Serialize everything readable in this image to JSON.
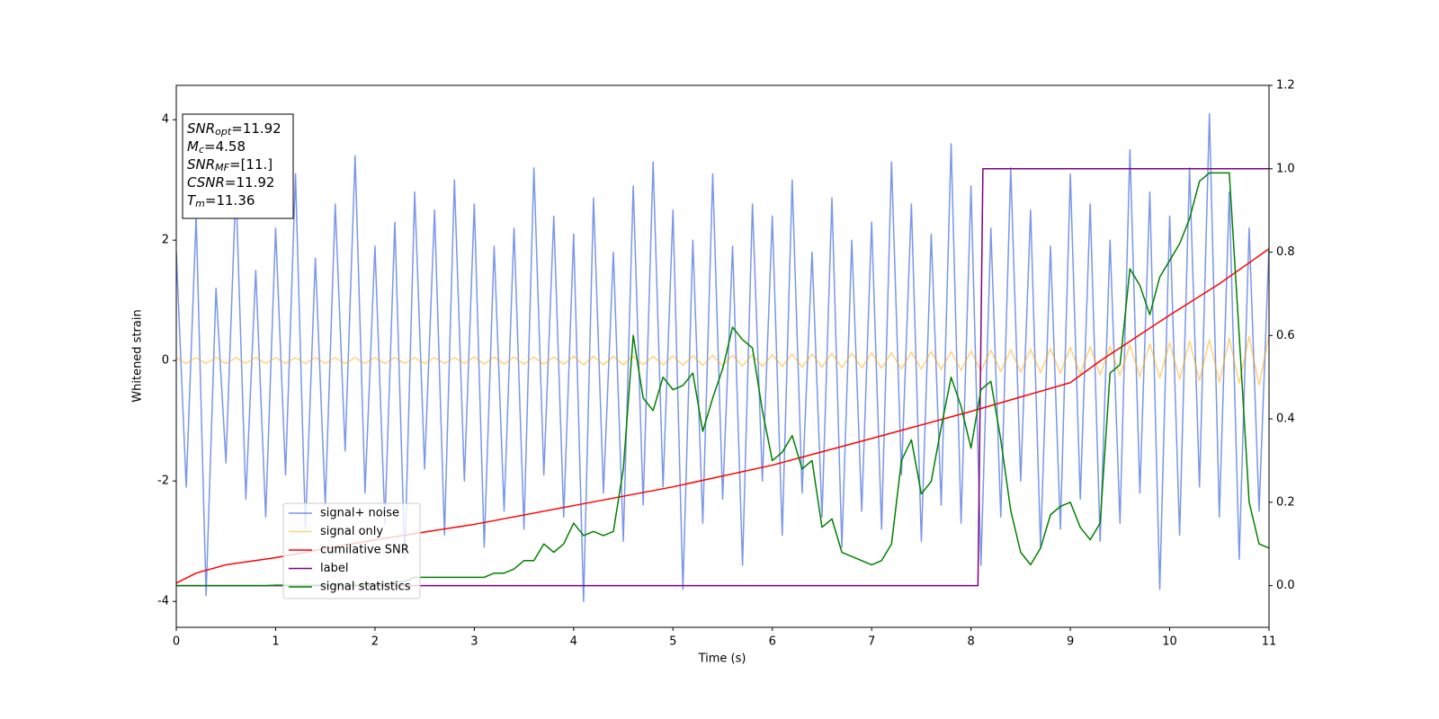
{
  "chart_data": {
    "type": "line",
    "xlabel": "Time (s)",
    "ylabel": "Whitened strain",
    "xlim": [
      0,
      11
    ],
    "xticks": [
      0,
      1,
      2,
      3,
      4,
      5,
      6,
      7,
      8,
      9,
      10,
      11
    ],
    "ylim": [
      -4.43,
      4.57
    ],
    "yticks": [
      -4,
      -2,
      0,
      2,
      4
    ],
    "y2lim": [
      -0.1,
      1.2
    ],
    "y2ticks": [
      {
        "value": 0,
        "label": "0.0"
      },
      0.2,
      0.4,
      0.6,
      0.8,
      {
        "value": 1,
        "label": "1.0"
      },
      1.2
    ],
    "legend": "lower left",
    "x": [
      0,
      0.1,
      0.2,
      0.3,
      0.4,
      0.5,
      0.6,
      0.7,
      0.8,
      0.9,
      1,
      1.1,
      1.2,
      1.3,
      1.4,
      1.5,
      1.6,
      1.7,
      1.8,
      1.9,
      2,
      2.1,
      2.2,
      2.3,
      2.4,
      2.5,
      2.6,
      2.7,
      2.8,
      2.9,
      3,
      3.1,
      3.2,
      3.3,
      3.4,
      3.5,
      3.6,
      3.7,
      3.8,
      3.9,
      4,
      4.1,
      4.2,
      4.3,
      4.4,
      4.5,
      4.6,
      4.7,
      4.8,
      4.9,
      5,
      5.1,
      5.2,
      5.3,
      5.4,
      5.5,
      5.6,
      5.7,
      5.8,
      5.9,
      6,
      6.1,
      6.2,
      6.3,
      6.4,
      6.5,
      6.6,
      6.7,
      6.8,
      6.9,
      7,
      7.1,
      7.2,
      7.3,
      7.4,
      7.5,
      7.6,
      7.7,
      7.8,
      7.9,
      8,
      8.1,
      8.2,
      8.3,
      8.4,
      8.5,
      8.6,
      8.7,
      8.8,
      8.9,
      9,
      9.1,
      9.2,
      9.3,
      9.4,
      9.5,
      9.6,
      9.7,
      9.8,
      9.9,
      10,
      10.1,
      10.2,
      10.3,
      10.4,
      10.5,
      10.6,
      10.7,
      10.8,
      10.9,
      11
    ],
    "series": [
      {
        "name": "signal+ noise",
        "color": "#4169e1",
        "values": [
          1.8,
          -2.1,
          2.4,
          -3.9,
          1.2,
          -1.7,
          2.9,
          -2.3,
          1.5,
          -2.6,
          2.2,
          -1.9,
          3.1,
          -2.8,
          1.7,
          -2.4,
          2.6,
          -1.5,
          3.4,
          -2.2,
          1.9,
          -2.7,
          2.3,
          -3.3,
          2.8,
          -1.8,
          2.5,
          -2.9,
          3.0,
          -2.0,
          2.6,
          -3.1,
          1.9,
          -2.5,
          2.2,
          -2.8,
          3.2,
          -1.9,
          2.4,
          -2.6,
          2.1,
          -4.0,
          2.7,
          -2.2,
          1.8,
          -3.0,
          2.9,
          -2.4,
          3.3,
          -2.1,
          2.5,
          -3.8,
          2.0,
          -2.7,
          3.1,
          -2.3,
          1.9,
          -3.4,
          2.6,
          -2.0,
          2.4,
          -2.9,
          3.0,
          -2.2,
          1.8,
          -2.6,
          2.7,
          -3.1,
          2.0,
          -2.5,
          2.3,
          -2.8,
          3.3,
          -1.9,
          2.6,
          -3.0,
          2.1,
          -2.4,
          3.6,
          -2.7,
          2.9,
          -3.4,
          2.2,
          -2.6,
          3.2,
          -2.0,
          2.5,
          -3.1,
          1.9,
          -2.8,
          3.1,
          -2.3,
          2.6,
          -3.0,
          2.0,
          -2.7,
          3.5,
          -2.2,
          2.8,
          -3.8,
          2.4,
          -2.9,
          3.2,
          -2.1,
          4.1,
          -2.6,
          2.8,
          -3.3,
          2.2,
          -2.5,
          1.9
        ]
      },
      {
        "name": "signal only",
        "color": "#ffa500",
        "values": [
          0.05,
          -0.05,
          0.05,
          -0.05,
          0.05,
          -0.05,
          0.05,
          -0.05,
          0.05,
          -0.05,
          0.05,
          -0.05,
          0.05,
          -0.05,
          0.05,
          -0.05,
          0.05,
          -0.05,
          0.05,
          -0.05,
          0.05,
          -0.05,
          0.05,
          -0.05,
          0.05,
          -0.05,
          0.05,
          -0.05,
          0.05,
          -0.05,
          0.06,
          -0.06,
          0.06,
          -0.06,
          0.06,
          -0.06,
          0.06,
          -0.06,
          0.06,
          -0.06,
          0.07,
          -0.07,
          0.07,
          -0.07,
          0.07,
          -0.07,
          0.07,
          -0.07,
          0.07,
          -0.07,
          0.08,
          -0.08,
          0.08,
          -0.08,
          0.09,
          -0.09,
          0.09,
          -0.09,
          0.1,
          -0.1,
          0.1,
          -0.1,
          0.11,
          -0.11,
          0.11,
          -0.11,
          0.12,
          -0.12,
          0.12,
          -0.12,
          0.13,
          -0.13,
          0.13,
          -0.14,
          0.14,
          -0.14,
          0.15,
          -0.15,
          0.15,
          -0.16,
          0.16,
          -0.17,
          0.17,
          -0.18,
          0.18,
          -0.19,
          0.19,
          -0.2,
          0.2,
          -0.21,
          0.22,
          -0.22,
          0.23,
          -0.24,
          0.24,
          -0.25,
          0.26,
          -0.27,
          0.28,
          -0.29,
          0.3,
          -0.31,
          0.32,
          -0.33,
          0.35,
          -0.36,
          0.37,
          -0.38,
          0.4,
          -0.41,
          0.42
        ]
      },
      {
        "name": "cumilative SNR",
        "color": "#ff0000",
        "axis": "y2",
        "x": [
          0,
          0.2,
          0.5,
          1,
          2,
          3,
          4,
          5,
          6,
          7,
          8,
          9,
          9.3,
          10,
          10.5,
          11
        ],
        "values": [
          0.006,
          0.03,
          0.05,
          0.067,
          0.11,
          0.147,
          0.192,
          0.237,
          0.289,
          0.353,
          0.418,
          0.487,
          0.539,
          0.649,
          0.724,
          0.808
        ]
      },
      {
        "name": "label",
        "color": "#800080",
        "axis": "y2",
        "x": [
          0,
          8.07,
          8.12,
          11
        ],
        "values": [
          0,
          0,
          1,
          1
        ]
      },
      {
        "name": "signal statistics",
        "color": "#008000",
        "axis": "y2",
        "values": [
          0,
          0,
          0,
          0,
          0,
          0,
          0,
          0,
          0,
          0,
          0.001,
          0.001,
          0.001,
          0.001,
          0.001,
          0.001,
          0.001,
          0.001,
          0.001,
          0.001,
          0.003,
          0.005,
          0.008,
          0.01,
          0.02,
          0.02,
          0.02,
          0.02,
          0.02,
          0.02,
          0.02,
          0.02,
          0.03,
          0.03,
          0.04,
          0.06,
          0.06,
          0.1,
          0.08,
          0.1,
          0.15,
          0.12,
          0.13,
          0.12,
          0.13,
          0.28,
          0.6,
          0.45,
          0.42,
          0.5,
          0.47,
          0.48,
          0.51,
          0.37,
          0.45,
          0.52,
          0.62,
          0.59,
          0.57,
          0.42,
          0.3,
          0.32,
          0.36,
          0.28,
          0.3,
          0.14,
          0.16,
          0.08,
          0.07,
          0.06,
          0.05,
          0.06,
          0.1,
          0.3,
          0.35,
          0.22,
          0.25,
          0.38,
          0.5,
          0.43,
          0.33,
          0.47,
          0.49,
          0.35,
          0.18,
          0.08,
          0.05,
          0.09,
          0.17,
          0.19,
          0.2,
          0.14,
          0.11,
          0.15,
          0.51,
          0.53,
          0.76,
          0.72,
          0.65,
          0.74,
          0.78,
          0.82,
          0.88,
          0.97,
          0.99,
          0.99,
          0.99,
          0.6,
          0.2,
          0.1,
          0.09
        ]
      }
    ],
    "annotation": [
      {
        "text": "SNR",
        "sub": "opt",
        "value": "=11.92"
      },
      {
        "text": "M",
        "sub": "c",
        "value": "=4.58"
      },
      {
        "text": "SNR",
        "sub": "MF",
        "value": "=[11.]"
      },
      {
        "text": "CSNR",
        "value": "=11.92"
      },
      {
        "text": "T",
        "sub": "m",
        "value": "=11.36"
      }
    ]
  }
}
